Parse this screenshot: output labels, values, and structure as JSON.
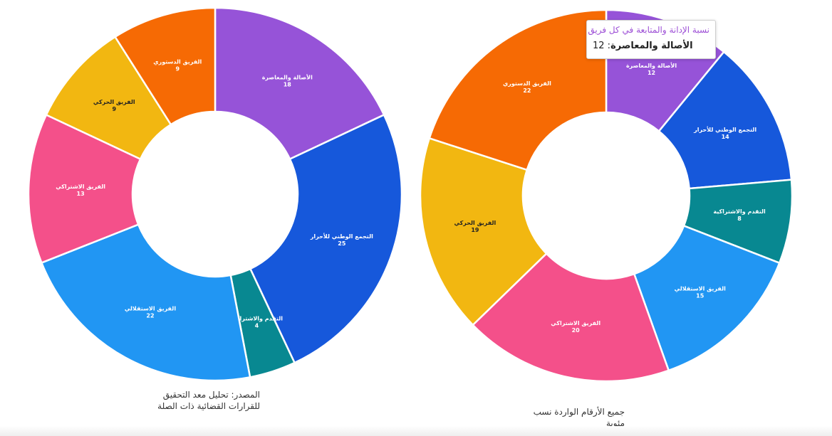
{
  "chart_data": [
    {
      "type": "pie",
      "donut": true,
      "slices": [
        {
          "label": "الأصالة والمعاصرة",
          "value": 18,
          "color": "#9653d8",
          "text_color": "#ffffff"
        },
        {
          "label": "التجمع الوطني للأحرار",
          "value": 25,
          "color": "#1658db",
          "text_color": "#ffffff"
        },
        {
          "label": "التقدم والاشتراكية",
          "value": 4,
          "color": "#088891",
          "text_color": "#ffffff"
        },
        {
          "label": "الفريق الاستقلالي",
          "value": 22,
          "color": "#2196f3",
          "text_color": "#ffffff"
        },
        {
          "label": "الفريق الاشتراكي",
          "value": 13,
          "color": "#f4508a",
          "text_color": "#ffffff"
        },
        {
          "label": "الفريق الحركي",
          "value": 9,
          "color": "#f2b711",
          "text_color": "#222222"
        },
        {
          "label": "الفريق الدستوري",
          "value": 9,
          "color": "#f66a04",
          "text_color": "#ffffff"
        }
      ],
      "note": [
        "المصدر: تحليل معد التحقيق",
        "للقرارات القضائية ذات الصلة"
      ]
    },
    {
      "type": "pie",
      "donut": true,
      "slices": [
        {
          "label": "الأصالة والمعاصرة",
          "value": 12,
          "color": "#9653d8",
          "text_color": "#ffffff"
        },
        {
          "label": "التجمع الوطني للأحرار",
          "value": 14,
          "color": "#1658db",
          "text_color": "#ffffff"
        },
        {
          "label": "التقدم والاشتراكية",
          "value": 8,
          "color": "#088891",
          "text_color": "#ffffff"
        },
        {
          "label": "الفريق الاستقلالي",
          "value": 15,
          "color": "#2196f3",
          "text_color": "#ffffff"
        },
        {
          "label": "الفريق الاشتراكي",
          "value": 20,
          "color": "#f4508a",
          "text_color": "#ffffff"
        },
        {
          "label": "الفريق الحركي",
          "value": 19,
          "color": "#f2b711",
          "text_color": "#222222"
        },
        {
          "label": "الفريق الدستوري",
          "value": 22,
          "color": "#f66a04",
          "text_color": "#ffffff"
        }
      ],
      "note": [
        "جميع الأرقام الواردة نسب",
        "مئوية"
      ]
    }
  ],
  "tooltip": {
    "title": "نسبة الإدانة والمتابعة في كل فريق",
    "label": "الأصالة والمعاصرة",
    "value": "12"
  }
}
